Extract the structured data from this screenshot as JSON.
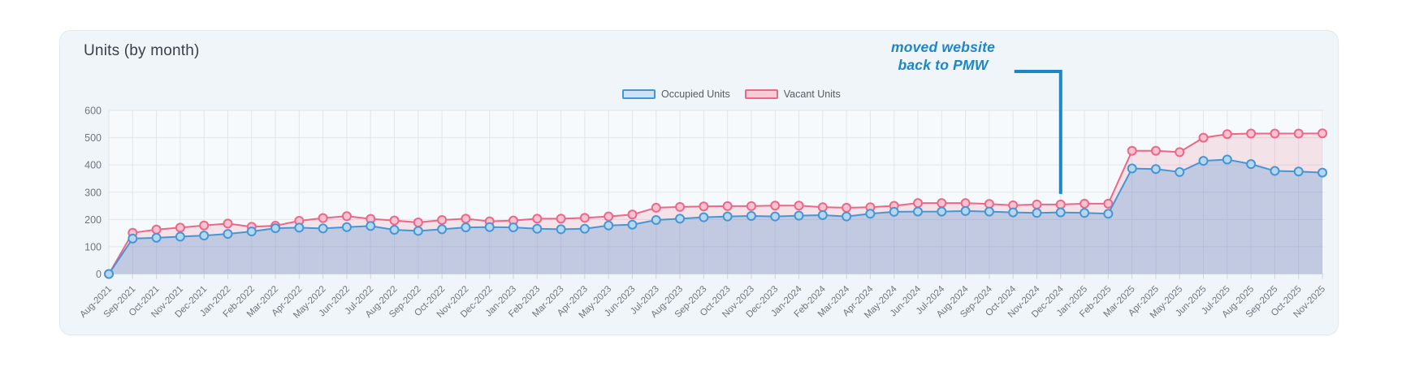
{
  "chart_data": {
    "type": "area",
    "title": "Units (by month)",
    "xlabel": "",
    "ylabel": "",
    "ylim": [
      0,
      600
    ],
    "yticks": [
      0,
      100,
      200,
      300,
      400,
      500,
      600
    ],
    "grid": true,
    "legend_position": "top-center",
    "categories": [
      "Aug-2021",
      "Sep-2021",
      "Oct-2021",
      "Nov-2021",
      "Dec-2021",
      "Jan-2022",
      "Feb-2022",
      "Mar-2022",
      "Apr-2022",
      "May-2022",
      "Jun-2022",
      "Jul-2022",
      "Aug-2022",
      "Sep-2022",
      "Oct-2022",
      "Nov-2022",
      "Dec-2022",
      "Jan-2023",
      "Feb-2023",
      "Mar-2023",
      "Apr-2023",
      "May-2023",
      "Jun-2023",
      "Jul-2023",
      "Aug-2023",
      "Sep-2023",
      "Oct-2023",
      "Nov-2023",
      "Dec-2023",
      "Jan-2024",
      "Feb-2024",
      "Mar-2024",
      "Apr-2024",
      "May-2024",
      "Jun-2024",
      "Jul-2024",
      "Aug-2024",
      "Sep-2024",
      "Oct-2024",
      "Nov-2024",
      "Dec-2024",
      "Jan-2025",
      "Feb-2025",
      "Mar-2025",
      "Apr-2025",
      "May-2025",
      "Jun-2025",
      "Jul-2025",
      "Aug-2025",
      "Sep-2025",
      "Oct-2025",
      "Nov-2025"
    ],
    "series": [
      {
        "name": "Occupied Units",
        "color": "#4796d3",
        "marker_fill": "#b6d7f0",
        "legend_fill": "#cde2f5",
        "fill": "rgba(80,145,210,0.30)",
        "values": [
          0,
          130,
          133,
          137,
          141,
          147,
          156,
          168,
          170,
          167,
          172,
          176,
          162,
          158,
          164,
          171,
          172,
          171,
          166,
          164,
          166,
          178,
          181,
          198,
          203,
          208,
          211,
          213,
          211,
          214,
          216,
          211,
          221,
          228,
          229,
          229,
          231,
          229,
          226,
          224,
          226,
          224,
          221,
          387,
          385,
          374,
          415,
          420,
          403,
          378,
          376,
          372
        ]
      },
      {
        "name": "Vacant Units",
        "color": "#ec6788",
        "marker_fill": "#f8c2d0",
        "legend_fill": "#f7ccd7",
        "fill": "rgba(238,106,140,0.17)",
        "values": [
          0,
          151,
          163,
          170,
          178,
          185,
          173,
          177,
          195,
          205,
          212,
          202,
          196,
          189,
          198,
          203,
          193,
          196,
          203,
          203,
          206,
          211,
          218,
          243,
          246,
          248,
          249,
          249,
          251,
          251,
          245,
          243,
          245,
          250,
          260,
          260,
          260,
          257,
          252,
          255,
          255,
          258,
          258,
          452,
          452,
          447,
          500,
          513,
          515,
          515,
          515,
          516
        ]
      }
    ],
    "annotation": {
      "line1": "moved website",
      "line2": "back to PMW",
      "text": "moved website back to PMW",
      "color": "#1b87c9",
      "target_category": "Dec-2024",
      "target_value": 255
    }
  }
}
